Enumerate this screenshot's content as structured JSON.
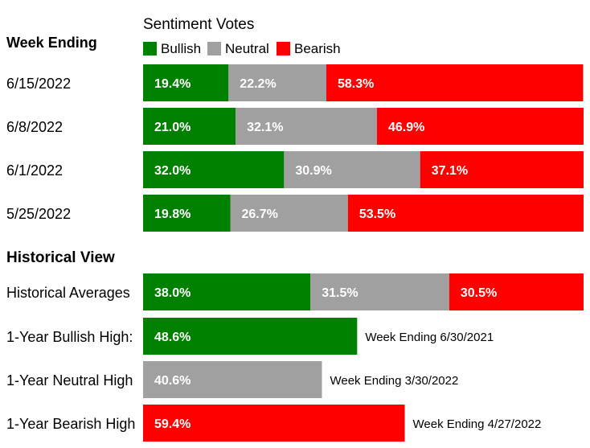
{
  "chart_data": {
    "type": "bar",
    "stacked": true,
    "orientation": "horizontal",
    "legend_title": "Sentiment Votes",
    "legend_placement": "top",
    "grid": false,
    "xlim": [
      0,
      100
    ],
    "colors": {
      "Bullish": "#008000",
      "Neutral": "#a0a0a0",
      "Bearish": "#ff0000"
    },
    "series_names": [
      "Bullish",
      "Neutral",
      "Bearish"
    ],
    "weekly": {
      "header": "Week Ending",
      "rows": [
        {
          "label": "6/15/2022",
          "values": [
            19.4,
            22.2,
            58.3
          ],
          "texts": [
            "19.4%",
            "22.2%",
            "58.3%"
          ]
        },
        {
          "label": "6/8/2022",
          "values": [
            21.0,
            32.1,
            46.9
          ],
          "texts": [
            "21.0%",
            "32.1%",
            "46.9%"
          ]
        },
        {
          "label": "6/1/2022",
          "values": [
            32.0,
            30.9,
            37.1
          ],
          "texts": [
            "32.0%",
            "30.9%",
            "37.1%"
          ]
        },
        {
          "label": "5/25/2022",
          "values": [
            19.8,
            26.7,
            53.5
          ],
          "texts": [
            "19.8%",
            "26.7%",
            "53.5%"
          ]
        }
      ]
    },
    "historical": {
      "header": "Historical View",
      "averages": {
        "label": "Historical Averages",
        "values": [
          38.0,
          31.5,
          30.5
        ],
        "texts": [
          "38.0%",
          "31.5%",
          "30.5%"
        ]
      },
      "highs": [
        {
          "label": "1-Year Bullish High:",
          "series": "Bullish",
          "value": 48.6,
          "text": "48.6%",
          "note": "Week Ending 6/30/2021"
        },
        {
          "label": "1-Year Neutral High",
          "series": "Neutral",
          "value": 40.6,
          "text": "40.6%",
          "note": "Week Ending 3/30/2022"
        },
        {
          "label": "1-Year Bearish High",
          "series": "Bearish",
          "value": 59.4,
          "text": "59.4%",
          "note": "Week Ending 4/27/2022"
        }
      ]
    }
  }
}
